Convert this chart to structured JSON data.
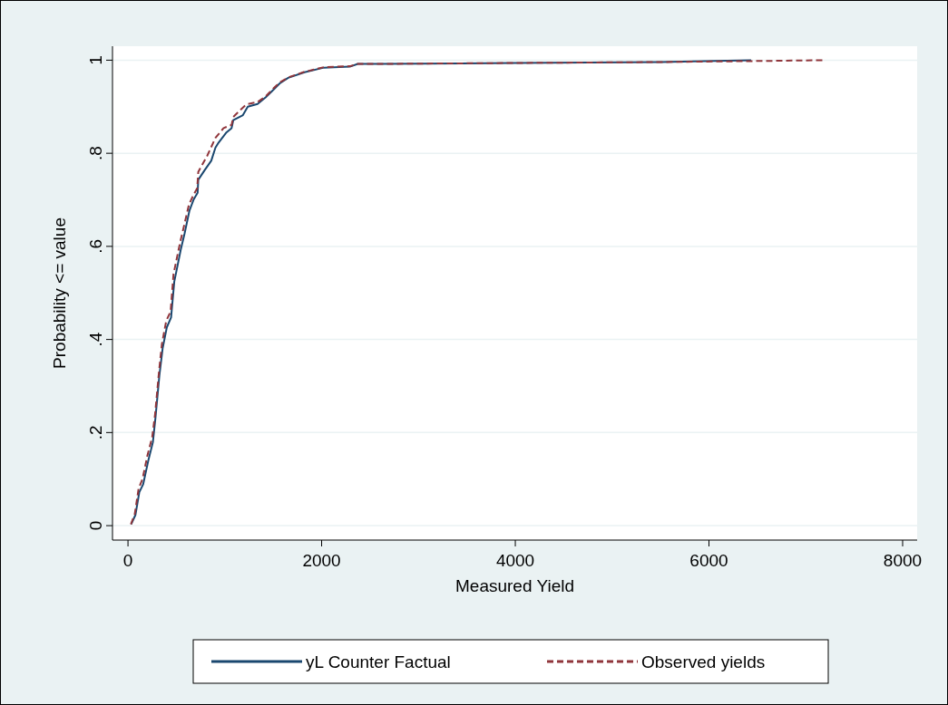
{
  "chart_data": {
    "type": "line",
    "xlabel": "Measured Yield",
    "ylabel": "Probability <= value",
    "xlim": [
      -160,
      8150
    ],
    "ylim": [
      -0.031,
      1.03
    ],
    "xticks": [
      0,
      2000,
      4000,
      6000,
      8000
    ],
    "yticks": [
      0,
      {
        "value": 0.2,
        "label": ".2"
      },
      {
        "value": 0.4,
        "label": ".4"
      },
      {
        "value": 0.6,
        "label": ".6"
      },
      {
        "value": 0.8,
        "label": ".8"
      },
      1
    ],
    "grid": "y",
    "legend": "bottom",
    "series": [
      {
        "name": "yL Counter Factual",
        "color": "#1a476f",
        "line_style": "solid",
        "x": [
          33,
          77,
          117,
          157,
          211,
          257,
          284,
          324,
          358,
          401,
          445,
          478,
          518,
          545,
          585,
          635,
          679,
          719,
          726,
          793,
          860,
          903,
          936,
          1013,
          1070,
          1087,
          1187,
          1237,
          1338,
          1421,
          1505,
          1572,
          1655,
          1823,
          2023,
          2291,
          2374,
          2612,
          4000,
          5500,
          6435
        ],
        "values": [
          0.003,
          0.023,
          0.072,
          0.089,
          0.141,
          0.179,
          0.232,
          0.322,
          0.381,
          0.426,
          0.447,
          0.524,
          0.565,
          0.593,
          0.628,
          0.677,
          0.701,
          0.715,
          0.743,
          0.764,
          0.784,
          0.812,
          0.823,
          0.844,
          0.854,
          0.871,
          0.882,
          0.9,
          0.906,
          0.92,
          0.937,
          0.951,
          0.962,
          0.974,
          0.984,
          0.986,
          0.992,
          0.992,
          0.994,
          0.996,
          1.0
        ]
      },
      {
        "name": "Observed yields",
        "color": "#90353b",
        "line_style": "dashed",
        "x": [
          30,
          70,
          110,
          150,
          200,
          250,
          280,
          320,
          350,
          395,
          440,
          470,
          510,
          540,
          580,
          630,
          675,
          715,
          726,
          819,
          903,
          987,
          1070,
          1087,
          1221,
          1338,
          1421,
          1505,
          1572,
          1655,
          1823,
          2023,
          2291,
          2374,
          2612,
          4000,
          5500,
          6435,
          7185
        ],
        "values": [
          0.003,
          0.025,
          0.08,
          0.1,
          0.15,
          0.19,
          0.24,
          0.33,
          0.39,
          0.44,
          0.46,
          0.54,
          0.58,
          0.61,
          0.645,
          0.69,
          0.71,
          0.725,
          0.76,
          0.795,
          0.833,
          0.854,
          0.861,
          0.878,
          0.905,
          0.91,
          0.922,
          0.94,
          0.953,
          0.963,
          0.975,
          0.985,
          0.987,
          0.992,
          0.992,
          0.994,
          0.996,
          0.998,
          1.0
        ]
      }
    ]
  }
}
